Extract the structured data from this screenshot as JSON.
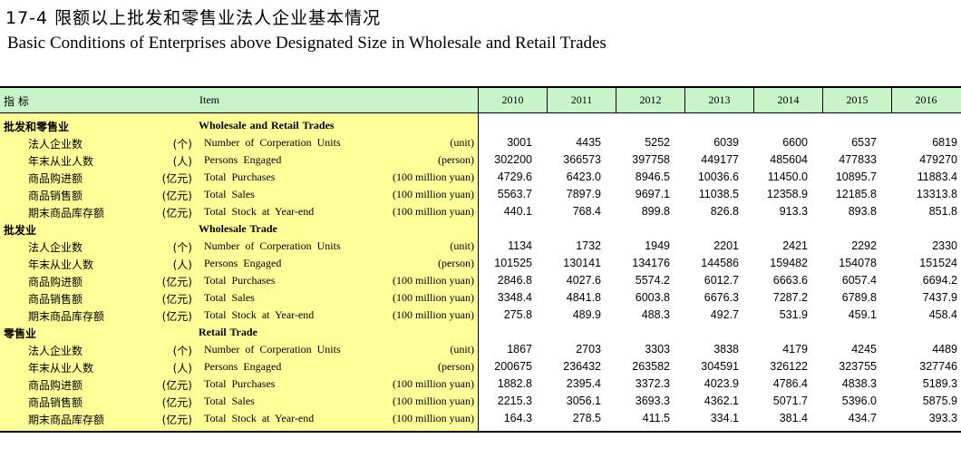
{
  "title": {
    "cn": "17-4  限额以上批发和零售业法人企业基本情况",
    "en": "Basic Conditions of Enterprises above Designated Size in Wholesale and Retail Trades"
  },
  "header": {
    "indicator": "指    标",
    "item": "Item",
    "years": [
      "2010",
      "2011",
      "2012",
      "2013",
      "2014",
      "2015",
      "2016"
    ]
  },
  "sections": [
    {
      "cn": "批发和零售业",
      "en": "Wholesale and  Retail Trades",
      "rows": [
        {
          "cn": "法人企业数",
          "unit_cn": "(个)",
          "en": "Number of  Corperation Units",
          "unit_en": "(unit)",
          "values": [
            "3001",
            "4435",
            "5252",
            "6039",
            "6600",
            "6537",
            "6819"
          ]
        },
        {
          "cn": "年末从业人数",
          "unit_cn": "(人)",
          "en": "Persons Engaged",
          "unit_en": "(person)",
          "values": [
            "302200",
            "366573",
            "397758",
            "449177",
            "485604",
            "477833",
            "479270"
          ]
        },
        {
          "cn": "商品购进额",
          "unit_cn": "(亿元)",
          "en": "Total Purchases",
          "unit_en": "(100 million yuan)",
          "values": [
            "4729.6",
            "6423.0",
            "8946.5",
            "10036.6",
            "11450.0",
            "10895.7",
            "11883.4"
          ]
        },
        {
          "cn": "商品销售额",
          "unit_cn": "(亿元)",
          "en": "Total Sales",
          "unit_en": "(100 million yuan)",
          "values": [
            "5563.7",
            "7897.9",
            "9697.1",
            "11038.5",
            "12358.9",
            "12185.8",
            "13313.8"
          ]
        },
        {
          "cn": "期末商品库存额",
          "unit_cn": "(亿元)",
          "en": "Total Stock  at Year-end",
          "unit_en": "(100 million yuan)",
          "values": [
            "440.1",
            "768.4",
            "899.8",
            "826.8",
            "913.3",
            "893.8",
            "851.8"
          ]
        }
      ]
    },
    {
      "cn": "批发业",
      "en": "Wholesale Trade",
      "rows": [
        {
          "cn": "法人企业数",
          "unit_cn": "(个)",
          "en": "Number of  Corperation Units",
          "unit_en": "(unit)",
          "values": [
            "1134",
            "1732",
            "1949",
            "2201",
            "2421",
            "2292",
            "2330"
          ]
        },
        {
          "cn": "年末从业人数",
          "unit_cn": "(人)",
          "en": "Persons Engaged",
          "unit_en": "(person)",
          "values": [
            "101525",
            "130141",
            "134176",
            "144586",
            "159482",
            "154078",
            "151524"
          ]
        },
        {
          "cn": "商品购进额",
          "unit_cn": "(亿元)",
          "en": "Total Purchases",
          "unit_en": "(100 million yuan)",
          "values": [
            "2846.8",
            "4027.6",
            "5574.2",
            "6012.7",
            "6663.6",
            "6057.4",
            "6694.2"
          ]
        },
        {
          "cn": "商品销售额",
          "unit_cn": "(亿元)",
          "en": "Total Sales",
          "unit_en": "(100 million yuan)",
          "values": [
            "3348.4",
            "4841.8",
            "6003.8",
            "6676.3",
            "7287.2",
            "6789.8",
            "7437.9"
          ]
        },
        {
          "cn": "期末商品库存额",
          "unit_cn": "(亿元)",
          "en": "Total Stock  at Year-end",
          "unit_en": "(100 million yuan)",
          "values": [
            "275.8",
            "489.9",
            "488.3",
            "492.7",
            "531.9",
            "459.1",
            "458.4"
          ]
        }
      ]
    },
    {
      "cn": "零售业",
      "en": "Retail Trade",
      "rows": [
        {
          "cn": "法人企业数",
          "unit_cn": "(个)",
          "en": "Number of  Corperation Units",
          "unit_en": "(unit)",
          "values": [
            "1867",
            "2703",
            "3303",
            "3838",
            "4179",
            "4245",
            "4489"
          ]
        },
        {
          "cn": "年末从业人数",
          "unit_cn": "(人)",
          "en": "Persons Engaged",
          "unit_en": "(person)",
          "values": [
            "200675",
            "236432",
            "263582",
            "304591",
            "326122",
            "323755",
            "327746"
          ]
        },
        {
          "cn": "商品购进额",
          "unit_cn": "(亿元)",
          "en": "Total Purchases",
          "unit_en": "(100 million yuan)",
          "values": [
            "1882.8",
            "2395.4",
            "3372.3",
            "4023.9",
            "4786.4",
            "4838.3",
            "5189.3"
          ]
        },
        {
          "cn": "商品销售额",
          "unit_cn": "(亿元)",
          "en": "Total Sales",
          "unit_en": "(100 million yuan)",
          "values": [
            "2215.3",
            "3056.1",
            "3693.3",
            "4362.1",
            "5071.7",
            "5396.0",
            "5875.9"
          ]
        },
        {
          "cn": "期末商品库存额",
          "unit_cn": "(亿元)",
          "en": "Total Stock  at Year-end",
          "unit_en": "(100 million yuan)",
          "values": [
            "164.3",
            "278.5",
            "411.5",
            "334.1",
            "381.4",
            "434.7",
            "393.3"
          ]
        }
      ]
    }
  ]
}
